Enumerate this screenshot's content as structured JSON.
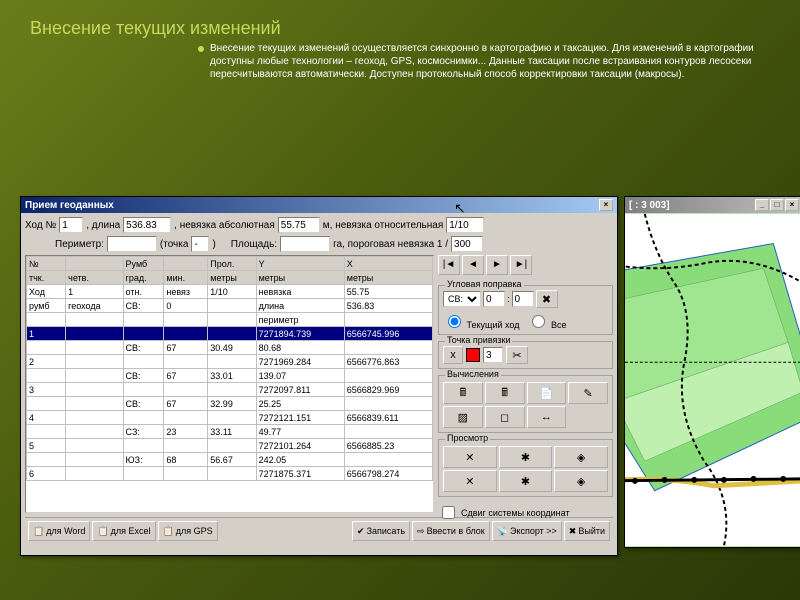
{
  "slide": {
    "title": "Внесение текущих изменений",
    "description": "Внесение текущих изменений осуществляется синхронно в картографию и таксацию. Для изменений в картографии доступны любые технологии – геоход, GPS, космоснимки... Данные таксации после встраивания контуров лесосеки пересчитываются автоматически. Доступен протокольный способ корректировки таксации (макросы)."
  },
  "dialog": {
    "title": "Прием геоданных",
    "top": {
      "hod_no_label": "Ход №",
      "hod_no": "1",
      "dlina_label": ", длина",
      "dlina": "536.83",
      "nevyazka_abs_label": ", невязка абсолютная",
      "nevyazka_abs": "55.75",
      "m_label": "м, невязка относительная",
      "nevyazka_rel": "1/10",
      "perimetr_label": "Периметр:",
      "perimetr": "",
      "tochka_label": "(точка",
      "tochka": "-",
      "tochka_close": ")",
      "ploshad_label": "Площадь:",
      "ploshad": "",
      "ga_label": "га, пороговая невязка 1 /",
      "porog": "300"
    },
    "table": {
      "group_headers": [
        "№",
        "",
        "Румб",
        "",
        "Прол.",
        "Y",
        "X"
      ],
      "headers": [
        "тчк.",
        "четв.",
        "град.",
        "мин.",
        "метры",
        "метры",
        "метры"
      ],
      "rows": [
        [
          "Ход",
          "1",
          "отн.",
          "невяз",
          "1/10",
          "невязка",
          "55.75"
        ],
        [
          "румб",
          "геохода",
          "СВ:",
          "0",
          "",
          "длина",
          "536.83"
        ],
        [
          "",
          "",
          "",
          "",
          "",
          "периметр",
          ""
        ],
        [
          "1",
          "",
          "",
          "",
          "",
          "7271894.739",
          "6566745.996"
        ],
        [
          "",
          "",
          "СВ:",
          "67",
          "30.49",
          "80.68",
          ""
        ],
        [
          "2",
          "",
          "",
          "",
          "",
          "7271969.284",
          "6566776.863"
        ],
        [
          "",
          "",
          "СВ:",
          "67",
          "33.01",
          "139.07",
          ""
        ],
        [
          "3",
          "",
          "",
          "",
          "",
          "7272097.811",
          "6566829.969"
        ],
        [
          "",
          "",
          "СВ:",
          "67",
          "32.99",
          "25.25",
          ""
        ],
        [
          "4",
          "",
          "",
          "",
          "",
          "7272121.151",
          "6566839.611"
        ],
        [
          "",
          "",
          "СЗ:",
          "23",
          "33.11",
          "49.77",
          ""
        ],
        [
          "5",
          "",
          "",
          "",
          "",
          "7272101.264",
          "6566885.23"
        ],
        [
          "",
          "",
          "ЮЗ:",
          "68",
          "56.67",
          "242.05",
          ""
        ],
        [
          "6",
          "",
          "",
          "",
          "",
          "7271875.371",
          "6566798.274"
        ]
      ],
      "highlight_row": 3
    },
    "side": {
      "uglovaya_label": "Угловая поправка",
      "sel1": "СВ:",
      "val1": "0",
      "val2": "0",
      "radio_current": "Текущий ход",
      "radio_all": "Все",
      "tochka_label": "Точка привязки",
      "x_label": "x",
      "color": "#ff0000",
      "num": "3",
      "vychisleniya_label": "Вычисления",
      "prosmotr_label": "Просмотр",
      "sdvig_label": "Сдвиг системы координат"
    },
    "bottom": {
      "word": "для Word",
      "excel": "для Excel",
      "gps": "для GPS",
      "zapisat": "Записать",
      "vvesti": "Ввести в блок",
      "export": "Экспорт >>",
      "vyiti": "Выйти"
    }
  },
  "map_win": {
    "title": "[ : 3 003]",
    "polygon_fill": "#a8e090",
    "bg": "#ffffff"
  }
}
